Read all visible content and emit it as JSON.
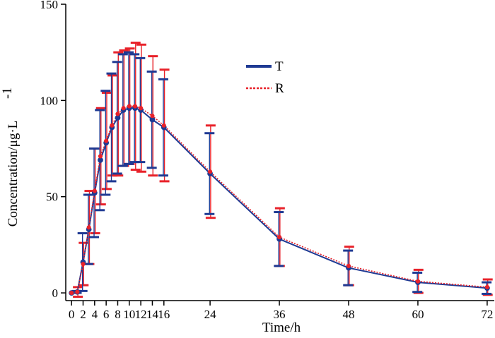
{
  "chart_data": {
    "type": "line",
    "title": "",
    "xlabel": "Time/h",
    "ylabel": "Concentration/μg·L",
    "ylabel_superscript": "-1",
    "xlim": [
      -1,
      72.5
    ],
    "ylim": [
      -4,
      150
    ],
    "x_ticks": [
      0,
      2,
      4,
      6,
      8,
      10,
      12,
      14,
      16,
      24,
      36,
      48,
      60,
      72
    ],
    "x_tick_labels": [
      "0",
      "2",
      "4",
      "6",
      "8",
      "10",
      "12",
      "14",
      "16",
      "24",
      "36",
      "48",
      "60",
      "72"
    ],
    "y_ticks": [
      0,
      50,
      100,
      150
    ],
    "y_tick_labels": [
      "0",
      "50",
      "100",
      "150"
    ],
    "legend_position": "top-center",
    "x": [
      0,
      1,
      2,
      3,
      4,
      5,
      6,
      7,
      8,
      9,
      10,
      11,
      12,
      14,
      16,
      24,
      36,
      48,
      60,
      72
    ],
    "series": [
      {
        "name": "T",
        "color": "#1f3a93",
        "style": "solid",
        "values": [
          0,
          0.5,
          16,
          33,
          52,
          69,
          78,
          86,
          91,
          95,
          96,
          96,
          95,
          90,
          86,
          62,
          28,
          13,
          5.5,
          2.5
        ],
        "sd": [
          0,
          0.5,
          15,
          18,
          23,
          26,
          27,
          28,
          29,
          29,
          29,
          28,
          27,
          25,
          25,
          21,
          14,
          9,
          5,
          3
        ]
      },
      {
        "name": "R",
        "color": "#e8222a",
        "style": "dotted",
        "values": [
          0,
          0.5,
          15,
          34,
          53,
          71,
          79,
          87,
          93,
          96,
          97,
          97,
          96,
          92,
          87,
          63,
          29,
          14,
          6,
          3
        ],
        "sd": [
          0,
          2.5,
          11,
          19,
          22,
          25,
          25,
          26,
          32,
          30,
          30,
          33,
          33,
          31,
          29,
          24,
          15,
          10,
          6,
          4
        ]
      }
    ]
  }
}
